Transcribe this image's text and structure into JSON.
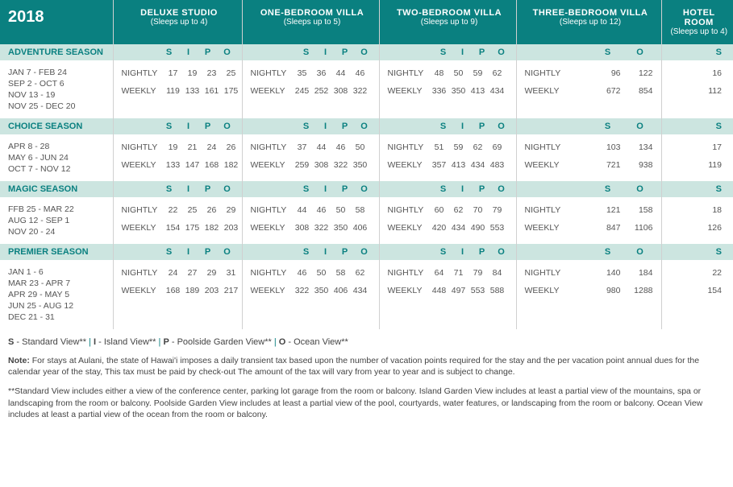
{
  "year": "2018",
  "rooms": [
    {
      "name": "DELUXE STUDIO",
      "sleeps": "(Sleeps up to 4)",
      "cols": [
        "S",
        "I",
        "P",
        "O"
      ]
    },
    {
      "name": "ONE-BEDROOM VILLA",
      "sleeps": "(Sleeps up to 5)",
      "cols": [
        "S",
        "I",
        "P",
        "O"
      ]
    },
    {
      "name": "TWO-BEDROOM VILLA",
      "sleeps": "(Sleeps up to 9)",
      "cols": [
        "S",
        "I",
        "P",
        "O"
      ]
    },
    {
      "name": "THREE-BEDROOM VILLA",
      "sleeps": "(Sleeps up to 12)",
      "cols": [
        "S",
        "O"
      ]
    },
    {
      "name": "HOTEL ROOM",
      "sleeps": "(Sleeps up to 4)",
      "cols": [
        "S"
      ]
    }
  ],
  "seasons": [
    {
      "name": "ADVENTURE SEASON",
      "dates": [
        "JAN 7 - FEB 24",
        "SEP 2 - OCT 6",
        "NOV 13 - 19",
        "NOV 25 - DEC 20"
      ],
      "nightly": {
        "r0": [
          "17",
          "19",
          "23",
          "25"
        ],
        "r1": [
          "35",
          "36",
          "44",
          "46"
        ],
        "r2": [
          "48",
          "50",
          "59",
          "62"
        ],
        "r3": [
          "96",
          "122"
        ],
        "r4": [
          "16"
        ]
      },
      "weekly": {
        "r0": [
          "119",
          "133",
          "161",
          "175"
        ],
        "r1": [
          "245",
          "252",
          "308",
          "322"
        ],
        "r2": [
          "336",
          "350",
          "413",
          "434"
        ],
        "r3": [
          "672",
          "854"
        ],
        "r4": [
          "112"
        ]
      }
    },
    {
      "name": "CHOICE SEASON",
      "dates": [
        "APR 8 - 28",
        "MAY 6 - JUN 24",
        "OCT 7 - NOV 12"
      ],
      "nightly": {
        "r0": [
          "19",
          "21",
          "24",
          "26"
        ],
        "r1": [
          "37",
          "44",
          "46",
          "50"
        ],
        "r2": [
          "51",
          "59",
          "62",
          "69"
        ],
        "r3": [
          "103",
          "134"
        ],
        "r4": [
          "17"
        ]
      },
      "weekly": {
        "r0": [
          "133",
          "147",
          "168",
          "182"
        ],
        "r1": [
          "259",
          "308",
          "322",
          "350"
        ],
        "r2": [
          "357",
          "413",
          "434",
          "483"
        ],
        "r3": [
          "721",
          "938"
        ],
        "r4": [
          "119"
        ]
      }
    },
    {
      "name": "MAGIC SEASON",
      "dates": [
        "FFB 25 - MAR 22",
        "AUG 12 - SEP 1",
        "NOV 20 - 24"
      ],
      "nightly": {
        "r0": [
          "22",
          "25",
          "26",
          "29"
        ],
        "r1": [
          "44",
          "46",
          "50",
          "58"
        ],
        "r2": [
          "60",
          "62",
          "70",
          "79"
        ],
        "r3": [
          "121",
          "158"
        ],
        "r4": [
          "18"
        ]
      },
      "weekly": {
        "r0": [
          "154",
          "175",
          "182",
          "203"
        ],
        "r1": [
          "308",
          "322",
          "350",
          "406"
        ],
        "r2": [
          "420",
          "434",
          "490",
          "553"
        ],
        "r3": [
          "847",
          "1106"
        ],
        "r4": [
          "126"
        ]
      }
    },
    {
      "name": "PREMIER SEASON",
      "dates": [
        "JAN 1 - 6",
        "MAR 23 - APR 7",
        "APR 29 - MAY 5",
        "JUN 25 - AUG 12",
        "DEC 21 - 31"
      ],
      "nightly": {
        "r0": [
          "24",
          "27",
          "29",
          "31"
        ],
        "r1": [
          "46",
          "50",
          "58",
          "62"
        ],
        "r2": [
          "64",
          "71",
          "79",
          "84"
        ],
        "r3": [
          "140",
          "184"
        ],
        "r4": [
          "22"
        ]
      },
      "weekly": {
        "r0": [
          "168",
          "189",
          "203",
          "217"
        ],
        "r1": [
          "322",
          "350",
          "406",
          "434"
        ],
        "r2": [
          "448",
          "497",
          "553",
          "588"
        ],
        "r3": [
          "980",
          "1288"
        ],
        "r4": [
          "154"
        ]
      }
    }
  ],
  "labels": {
    "nightly": "NIGHTLY",
    "weekly": "WEEKLY"
  },
  "legend": {
    "s": "S",
    "s_txt": " - Standard View**",
    "i": "I",
    "i_txt": " - Island View**",
    "p": "P",
    "p_txt": " - Poolside Garden View**",
    "o": "O",
    "o_txt": " - Ocean View**",
    "sep": "  |  "
  },
  "note1_label": "Note:",
  "note1": " For stays at Aulani, the state of Hawai'i imposes a daily transient tax based upon the number of vacation points required for the stay and the per vacation point annual dues for the calendar year of the stay, This tax must be paid by check-out The amount of the tax will vary from year to year and is subject to change.",
  "note2": "**Standard View includes either a view of the conference center, parking lot garage from the room or balcony. Island Garden View includes at least a partial view of the mountains, spa or landscaping from the room or balcony. Poolside Garden View includes at least a partial view of the pool, courtyards, water features, or landscaping from the room or balcony. Ocean View includes at least a partial view of the ocean from the room or balcony.",
  "colors": {
    "teal": "#0a8080",
    "bar": "#cce5e0",
    "text": "#444444",
    "border": "#d0d0d0"
  }
}
